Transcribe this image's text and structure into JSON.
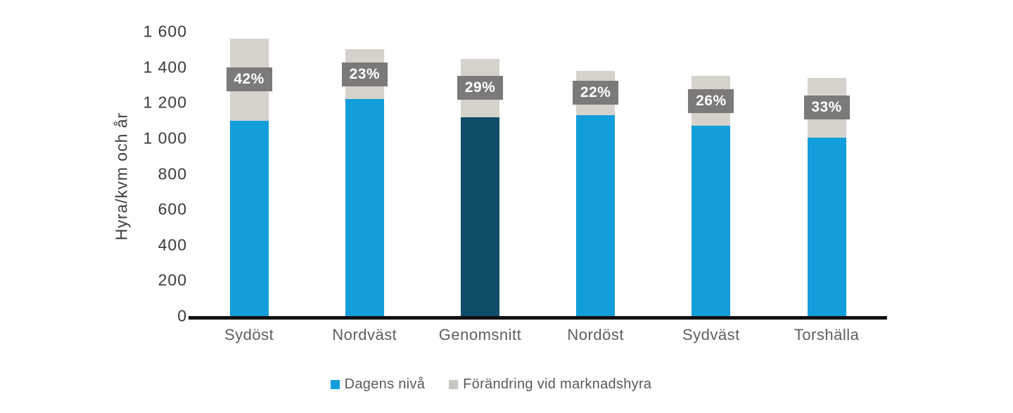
{
  "chart_data": {
    "type": "bar",
    "stacked": true,
    "title": "",
    "xlabel": "",
    "ylabel": "Hyra/kvm och år",
    "ylim": [
      0,
      1600
    ],
    "ytick_step": 200,
    "ytick_labels": [
      "0",
      "200",
      "400",
      "600",
      "800",
      "1 000",
      "1 200",
      "1 400",
      "1 600"
    ],
    "gridlines": false,
    "categories": [
      "Sydöst",
      "Nordväst",
      "Genomsnitt",
      "Nordöst",
      "Sydväst",
      "Torshälla"
    ],
    "series": [
      {
        "name": "Dagens nivå",
        "values": [
          1100,
          1220,
          1120,
          1130,
          1070,
          1005
        ],
        "colors": [
          "#129DDB",
          "#129DDB",
          "#0F4D68",
          "#129DDB",
          "#129DDB",
          "#129DDB"
        ]
      },
      {
        "name": "Förändring vid marknadshyra",
        "values": [
          460,
          280,
          325,
          250,
          280,
          335
        ],
        "color": "#D5D2CC"
      }
    ],
    "totals": [
      1560,
      1500,
      1445,
      1380,
      1350,
      1340
    ],
    "bar_labels": [
      "42%",
      "23%",
      "29%",
      "22%",
      "26%",
      "33%"
    ],
    "label_box_color": "#7C7A78",
    "label_text_color": "#FFFFFF",
    "highlighted_category": "Genomsnitt",
    "axis_color": "#111111",
    "legend_position": "bottom",
    "legend": [
      {
        "label": "Dagens nivå",
        "color": "#129DDB"
      },
      {
        "label": "Förändring vid marknadshyra",
        "color": "#C8C6C0"
      }
    ]
  }
}
